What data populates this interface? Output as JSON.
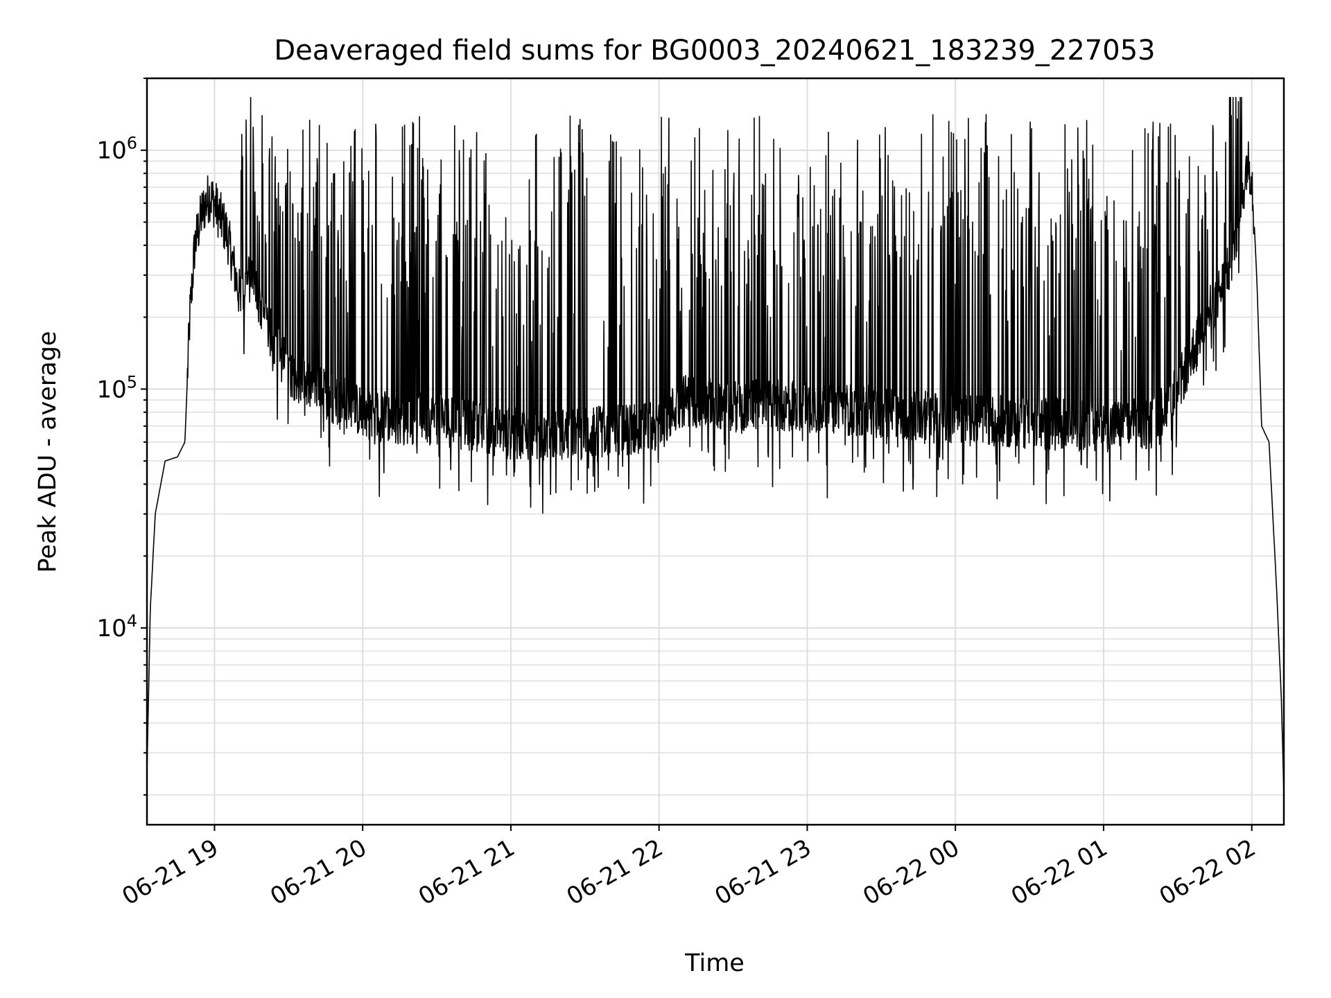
{
  "chart_data": {
    "type": "line",
    "title": "Deaveraged field sums for BG0003_20240621_183239_227053",
    "xlabel": "Time",
    "ylabel": "Peak ADU - average",
    "yscale": "log",
    "ylim": [
      1500,
      2000000
    ],
    "xlim": [
      "2024-06-21T18:32:39",
      "2024-06-22T02:13:00"
    ],
    "grid": "on",
    "legend": "none",
    "line_color": "#000000",
    "x_ticks": [
      "2024-06-21T19:00:00",
      "2024-06-21T20:00:00",
      "2024-06-21T21:00:00",
      "2024-06-21T22:00:00",
      "2024-06-21T23:00:00",
      "2024-06-22T00:00:00",
      "2024-06-22T01:00:00",
      "2024-06-22T02:00:00"
    ],
    "x_tick_labels": [
      "06-21 19",
      "06-21 20",
      "06-21 21",
      "06-21 22",
      "06-21 23",
      "06-22 00",
      "06-22 01",
      "06-22 02"
    ],
    "y_ticks": [
      10000,
      100000,
      1000000
    ],
    "y_tick_labels": [
      {
        "base": "10",
        "exp": "4"
      },
      {
        "base": "10",
        "exp": "5"
      },
      {
        "base": "10",
        "exp": "6"
      }
    ],
    "series": [
      {
        "x": [
          "2024-06-21T18:32:39",
          "2024-06-21T18:34:00",
          "2024-06-21T18:36:00",
          "2024-06-21T18:40:00",
          "2024-06-21T18:45:00",
          "2024-06-21T18:48:00",
          "2024-06-21T18:50:00",
          "2024-06-21T18:52:00",
          "2024-06-21T18:55:00",
          "2024-06-21T18:58:00",
          "2024-06-21T19:00:00",
          "2024-06-21T19:05:00",
          "2024-06-21T19:10:00",
          "2024-06-21T19:15:00",
          "2024-06-21T19:20:00",
          "2024-06-21T19:25:00",
          "2024-06-21T19:30:00",
          "2024-06-21T19:40:00",
          "2024-06-21T19:50:00",
          "2024-06-21T20:00:00",
          "2024-06-21T20:15:00",
          "2024-06-21T20:30:00",
          "2024-06-21T20:45:00",
          "2024-06-21T21:00:00",
          "2024-06-21T21:30:00",
          "2024-06-21T22:00:00",
          "2024-06-21T22:10:00",
          "2024-06-21T22:30:00",
          "2024-06-21T23:00:00",
          "2024-06-21T23:30:00",
          "2024-06-22T00:00:00",
          "2024-06-22T00:30:00",
          "2024-06-22T01:00:00",
          "2024-06-22T01:20:00",
          "2024-06-22T01:30:00",
          "2024-06-22T01:40:00",
          "2024-06-22T01:50:00",
          "2024-06-22T01:55:00",
          "2024-06-22T01:58:00",
          "2024-06-22T02:00:00",
          "2024-06-22T02:02:00",
          "2024-06-22T02:04:00",
          "2024-06-22T02:07:00",
          "2024-06-22T02:10:00",
          "2024-06-22T02:12:00",
          "2024-06-22T02:13:00"
        ],
        "y": [
          2500,
          12000,
          30000,
          50000,
          52000,
          60000,
          200000,
          400000,
          550000,
          650000,
          600000,
          450000,
          250000,
          300000,
          200000,
          150000,
          120000,
          100000,
          90000,
          80000,
          75000,
          75000,
          70000,
          65000,
          65000,
          70000,
          90000,
          85000,
          85000,
          80000,
          75000,
          72000,
          70000,
          72000,
          100000,
          180000,
          300000,
          500000,
          900000,
          800000,
          300000,
          70000,
          60000,
          15000,
          5000,
          2000
        ]
      }
    ]
  }
}
